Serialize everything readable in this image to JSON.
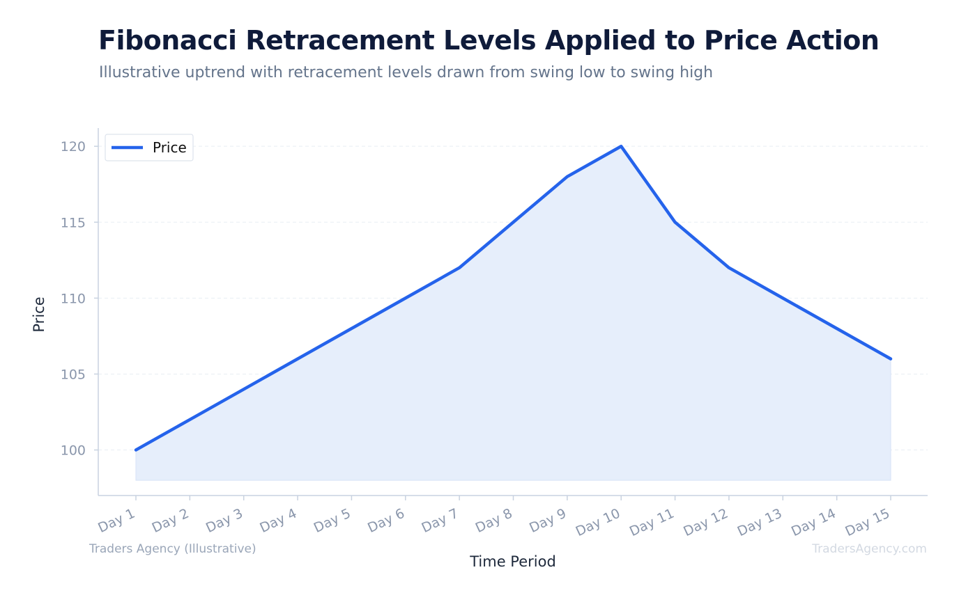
{
  "header": {
    "title": "Fibonacci Retracement Levels Applied to Price Action",
    "subtitle": "Illustrative uptrend with retracement levels drawn from swing low to swing high"
  },
  "footer": {
    "source_label": "Traders Agency (Illustrative)",
    "watermark": "TradersAgency.com"
  },
  "colors": {
    "line": "#2563eb",
    "fill": "#e6eefb",
    "axis": "#c8d2e0",
    "grid": "#e8edf3"
  },
  "chart_data": {
    "type": "line",
    "title": "Fibonacci Retracement Levels Applied to Price Action",
    "subtitle": "Illustrative uptrend with retracement levels drawn from swing low to swing high",
    "xlabel": "Time Period",
    "ylabel": "Price",
    "categories": [
      "Day 1",
      "Day 2",
      "Day 3",
      "Day 4",
      "Day 5",
      "Day 6",
      "Day 7",
      "Day 8",
      "Day 9",
      "Day 10",
      "Day 11",
      "Day 12",
      "Day 13",
      "Day 14",
      "Day 15"
    ],
    "series": [
      {
        "name": "Price",
        "values": [
          100,
          102,
          104,
          106,
          108,
          110,
          112,
          115,
          118,
          120,
          115,
          112,
          110,
          108,
          106
        ]
      }
    ],
    "yticks": [
      100,
      105,
      110,
      115,
      120
    ],
    "ylim": [
      97,
      121.2
    ],
    "fill_base": 98,
    "grid": true,
    "legend": "top-left"
  }
}
